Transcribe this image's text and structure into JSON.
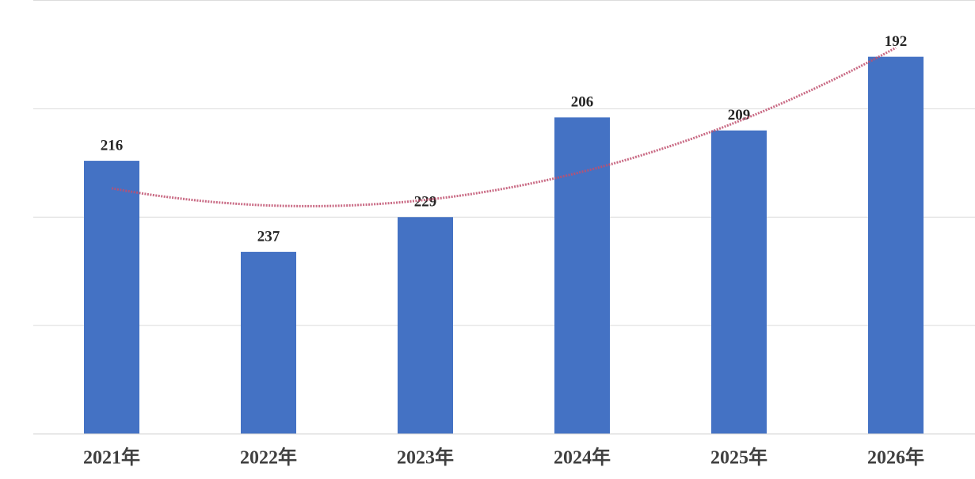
{
  "chart_data": {
    "type": "bar",
    "categories": [
      "2021年",
      "2022年",
      "2023年",
      "2024年",
      "2025年",
      "2026年"
    ],
    "values": [
      216,
      237,
      229,
      206,
      209,
      192
    ],
    "color": "#4472c4",
    "ylim": [
      279,
      179
    ],
    "yticks": [
      279,
      254,
      229,
      204,
      179
    ],
    "tick_labels": false,
    "grid": true,
    "trendline": "polynomial",
    "trendline_color": "#c0506e"
  }
}
